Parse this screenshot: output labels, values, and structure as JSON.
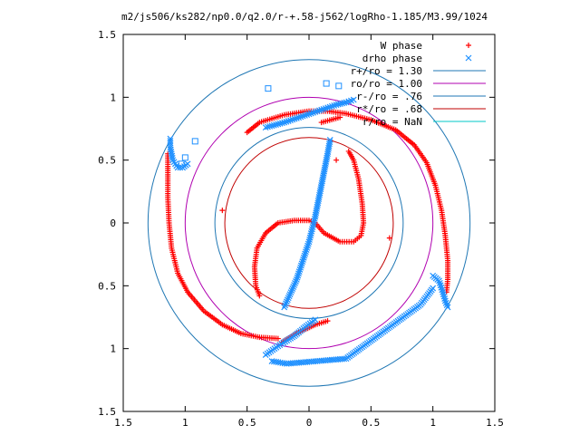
{
  "chart_data": {
    "type": "scatter",
    "title": "m2/js506/ks282/np0.0/q2.0/r-+.58-j562/logRho-1.185/M3.99/1024",
    "xlabel": "",
    "ylabel": "",
    "xlim": [
      -1.5,
      1.5
    ],
    "ylim": [
      -1.5,
      1.5
    ],
    "x_ticks": [
      -1.5,
      -1,
      -0.5,
      0,
      0.5,
      1,
      1.5
    ],
    "x_tick_labels": [
      "1.5",
      "1",
      "0.5",
      "0",
      "0.5",
      "1",
      "1.5"
    ],
    "y_ticks": [
      -1.5,
      -1,
      -0.5,
      0,
      0.5,
      1,
      1.5
    ],
    "y_tick_labels": [
      "1.5",
      "1",
      "0.5",
      "0",
      "0.5",
      "1",
      "1.5"
    ],
    "grid": false,
    "legend_position": "top-right",
    "circles": [
      {
        "name": "r+/ro = 1.30",
        "radius": 1.3,
        "color": "#1f77b4"
      },
      {
        "name": "ro/ro = 1.00",
        "radius": 1.0,
        "color": "#b000b0"
      },
      {
        "name": "r-/ro = .76",
        "radius": 0.76,
        "color": "#1f77b4"
      },
      {
        "name": "r*/ro = .68",
        "radius": 0.68,
        "color": "#c00000"
      },
      {
        "name": "r/ro = NaN",
        "radius": null,
        "color": "#00c8c8"
      }
    ],
    "series": [
      {
        "name": "W phase",
        "marker": "plus",
        "color": "#ff0000",
        "segments": [
          [
            [
              -0.5,
              0.72
            ],
            [
              -0.4,
              0.8
            ],
            [
              -0.2,
              0.86
            ],
            [
              0,
              0.89
            ],
            [
              0.15,
              0.89
            ],
            [
              0.3,
              0.87
            ],
            [
              0.5,
              0.82
            ],
            [
              0.7,
              0.74
            ],
            [
              0.85,
              0.62
            ],
            [
              0.95,
              0.48
            ],
            [
              1.02,
              0.3
            ],
            [
              1.07,
              0.1
            ],
            [
              1.1,
              -0.1
            ],
            [
              1.12,
              -0.3
            ],
            [
              1.12,
              -0.45
            ],
            [
              1.11,
              -0.55
            ]
          ],
          [
            [
              -1.14,
              0.55
            ],
            [
              -1.14,
              0.4
            ],
            [
              -1.14,
              0.2
            ],
            [
              -1.13,
              0
            ],
            [
              -1.11,
              -0.2
            ],
            [
              -1.06,
              -0.4
            ],
            [
              -0.98,
              -0.55
            ],
            [
              -0.85,
              -0.7
            ],
            [
              -0.7,
              -0.81
            ],
            [
              -0.55,
              -0.88
            ],
            [
              -0.4,
              -0.91
            ],
            [
              -0.25,
              -0.92
            ]
          ],
          [
            [
              -0.22,
              -0.95
            ],
            [
              -0.1,
              -0.88
            ],
            [
              0.05,
              -0.81
            ],
            [
              0.15,
              -0.78
            ]
          ],
          [
            [
              0.32,
              0.57
            ],
            [
              0.36,
              0.5
            ],
            [
              0.4,
              0.35
            ],
            [
              0.43,
              0.15
            ],
            [
              0.44,
              0
            ],
            [
              0.42,
              -0.1
            ],
            [
              0.36,
              -0.15
            ],
            [
              0.25,
              -0.15
            ],
            [
              0.12,
              -0.08
            ],
            [
              0.05,
              0
            ],
            [
              0,
              0.02
            ],
            [
              -0.12,
              0.02
            ],
            [
              -0.25,
              0
            ],
            [
              -0.35,
              -0.08
            ],
            [
              -0.42,
              -0.2
            ],
            [
              -0.44,
              -0.35
            ],
            [
              -0.43,
              -0.5
            ],
            [
              -0.4,
              -0.58
            ]
          ],
          [
            [
              0.1,
              0.8
            ],
            [
              0.25,
              0.84
            ]
          ],
          [
            [
              -0.7,
              0.1
            ]
          ],
          [
            [
              0.65,
              -0.12
            ]
          ],
          [
            [
              0.22,
              0.5
            ]
          ]
        ]
      },
      {
        "name": "drho phase",
        "marker": "x",
        "color": "#1e90ff",
        "segments": [
          [
            [
              -0.2,
              -0.67
            ],
            [
              -0.1,
              -0.45
            ],
            [
              0,
              -0.15
            ],
            [
              0.05,
              0.05
            ],
            [
              0.1,
              0.3
            ],
            [
              0.15,
              0.55
            ],
            [
              0.17,
              0.66
            ]
          ],
          [
            [
              -1.12,
              0.67
            ],
            [
              -1.12,
              0.6
            ],
            [
              -1.1,
              0.5
            ],
            [
              -1.06,
              0.44
            ],
            [
              -1.02,
              0.44
            ],
            [
              -0.98,
              0.47
            ]
          ],
          [
            [
              -0.35,
              0.76
            ],
            [
              -0.2,
              0.8
            ],
            [
              -0.05,
              0.85
            ],
            [
              0.1,
              0.9
            ],
            [
              0.22,
              0.94
            ],
            [
              0.3,
              0.96
            ],
            [
              0.36,
              0.98
            ]
          ],
          [
            [
              1.0,
              -0.42
            ],
            [
              1.05,
              -0.46
            ],
            [
              1.08,
              -0.55
            ],
            [
              1.1,
              -0.62
            ],
            [
              1.12,
              -0.67
            ]
          ],
          [
            [
              -0.35,
              -1.05
            ],
            [
              -0.25,
              -0.98
            ],
            [
              -0.12,
              -0.9
            ],
            [
              -0.02,
              -0.82
            ],
            [
              0.05,
              -0.77
            ]
          ],
          [
            [
              -0.3,
              -1.1
            ],
            [
              -0.18,
              -1.12
            ],
            [
              0.3,
              -1.08
            ],
            [
              0.9,
              -0.65
            ],
            [
              1.0,
              -0.52
            ]
          ]
        ]
      },
      {
        "name": "",
        "marker": "square",
        "color": "#1e90ff",
        "segments": [
          [
            [
              -0.33,
              1.07
            ],
            [
              0.14,
              1.11
            ],
            [
              0.24,
              1.09
            ],
            [
              -0.92,
              0.65
            ],
            [
              -1.0,
              0.52
            ],
            [
              -1.03,
              0.47
            ]
          ]
        ]
      }
    ]
  }
}
